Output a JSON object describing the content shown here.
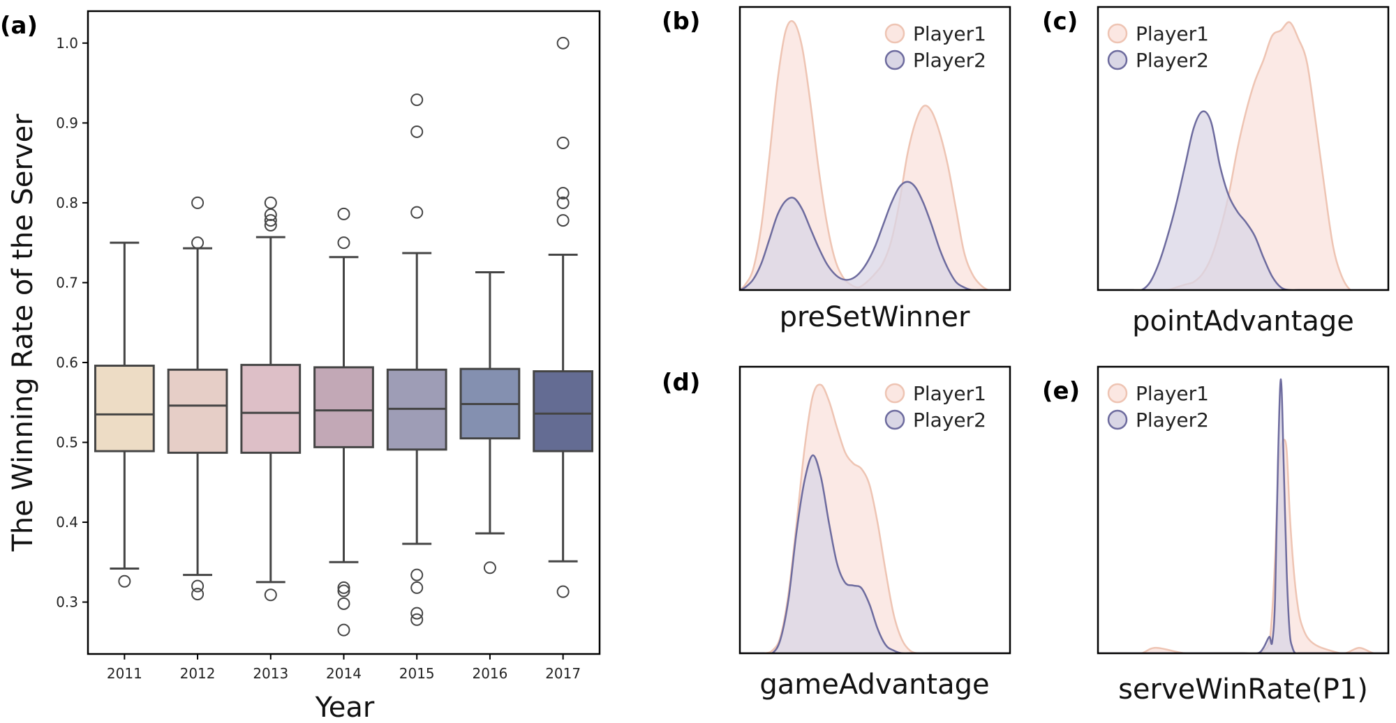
{
  "colors": {
    "player1_fill": "#fbe7e2",
    "player1_line": "#eec4b3",
    "player2_fill": "#d9d6e5",
    "player2_line": "#6d6b9e",
    "box_edge": "#444444"
  },
  "chart_data": [
    {
      "id": "a",
      "panel_label": "(a)",
      "type": "box",
      "title": "",
      "xlabel": "Year",
      "ylabel": "The Winning Rate of the Server",
      "ylim": [
        0.235,
        1.04
      ],
      "yticks": [
        "0.3",
        "0.4",
        "0.5",
        "0.6",
        "0.7",
        "0.8",
        "0.9",
        "1.0"
      ],
      "categories": [
        "2011",
        "2012",
        "2013",
        "2014",
        "2015",
        "2016",
        "2017"
      ],
      "box_colors": [
        "#eddcc5",
        "#e6cec7",
        "#ddbfc7",
        "#c2a8b6",
        "#9e9db6",
        "#8490b0",
        "#646c93"
      ],
      "boxes": [
        {
          "whislo": 0.342,
          "q1": 0.489,
          "med": 0.535,
          "q3": 0.596,
          "whishi": 0.75,
          "fliers": [
            0.326
          ]
        },
        {
          "whislo": 0.334,
          "q1": 0.487,
          "med": 0.546,
          "q3": 0.591,
          "whishi": 0.743,
          "fliers": [
            0.8,
            0.75,
            0.32,
            0.31
          ]
        },
        {
          "whislo": 0.325,
          "q1": 0.487,
          "med": 0.537,
          "q3": 0.597,
          "whishi": 0.757,
          "fliers": [
            0.8,
            0.785,
            0.778,
            0.772,
            0.309
          ]
        },
        {
          "whislo": 0.35,
          "q1": 0.494,
          "med": 0.54,
          "q3": 0.594,
          "whishi": 0.732,
          "fliers": [
            0.786,
            0.75,
            0.318,
            0.314,
            0.298,
            0.265
          ]
        },
        {
          "whislo": 0.373,
          "q1": 0.491,
          "med": 0.542,
          "q3": 0.591,
          "whishi": 0.737,
          "fliers": [
            0.929,
            0.889,
            0.788,
            0.334,
            0.318,
            0.286,
            0.278
          ]
        },
        {
          "whislo": 0.386,
          "q1": 0.505,
          "med": 0.548,
          "q3": 0.592,
          "whishi": 0.713,
          "fliers": [
            0.343
          ]
        },
        {
          "whislo": 0.351,
          "q1": 0.489,
          "med": 0.536,
          "q3": 0.589,
          "whishi": 0.735,
          "fliers": [
            1.0,
            0.875,
            0.812,
            0.8,
            0.778,
            0.313
          ]
        }
      ]
    },
    {
      "id": "b",
      "panel_label": "(b)",
      "type": "area",
      "xlabel": "preSetWinner",
      "legend_position": "top-right",
      "legend": [
        "Player1",
        "Player2"
      ],
      "x": [
        0,
        0.02,
        0.05,
        0.08,
        0.11,
        0.14,
        0.17,
        0.2,
        0.23,
        0.26,
        0.29,
        0.32,
        0.35,
        0.38,
        0.41,
        0.44,
        0.47,
        0.5,
        0.53,
        0.56,
        0.59,
        0.62,
        0.65,
        0.68,
        0.71,
        0.74,
        0.77,
        0.8,
        0.83,
        0.86,
        0.89,
        0.92,
        0.95,
        0.98,
        1.0
      ],
      "series": [
        {
          "name": "Player1",
          "values": [
            0.0,
            0.02,
            0.08,
            0.24,
            0.5,
            0.78,
            0.96,
            0.99,
            0.9,
            0.7,
            0.46,
            0.26,
            0.12,
            0.05,
            0.02,
            0.01,
            0.03,
            0.06,
            0.1,
            0.18,
            0.32,
            0.5,
            0.62,
            0.68,
            0.66,
            0.58,
            0.46,
            0.3,
            0.14,
            0.06,
            0.02,
            0.0,
            0.0,
            0.0,
            0.0
          ]
        },
        {
          "name": "Player2",
          "values": [
            0.0,
            0.01,
            0.04,
            0.1,
            0.19,
            0.28,
            0.33,
            0.34,
            0.3,
            0.23,
            0.16,
            0.1,
            0.06,
            0.04,
            0.04,
            0.06,
            0.1,
            0.16,
            0.24,
            0.32,
            0.38,
            0.4,
            0.38,
            0.32,
            0.24,
            0.15,
            0.08,
            0.03,
            0.01,
            0.0,
            0.0,
            0.0,
            0.0,
            0.0,
            0.0
          ]
        }
      ]
    },
    {
      "id": "c",
      "panel_label": "(c)",
      "type": "area",
      "xlabel": "pointAdvantage",
      "legend_position": "top-left",
      "legend": [
        "Player1",
        "Player2"
      ],
      "x": [
        0,
        0.03,
        0.06,
        0.09,
        0.12,
        0.15,
        0.18,
        0.21,
        0.24,
        0.27,
        0.3,
        0.33,
        0.36,
        0.39,
        0.42,
        0.45,
        0.48,
        0.51,
        0.54,
        0.57,
        0.6,
        0.63,
        0.66,
        0.69,
        0.72,
        0.75,
        0.78,
        0.81,
        0.84,
        0.87,
        0.9,
        0.93,
        0.96,
        1.0
      ],
      "series": [
        {
          "name": "Player1",
          "values": [
            0.0,
            0.0,
            0.0,
            0.0,
            0.0,
            0.0,
            0.0,
            0.0,
            0.0,
            0.01,
            0.02,
            0.03,
            0.06,
            0.12,
            0.22,
            0.35,
            0.52,
            0.66,
            0.77,
            0.85,
            0.94,
            0.96,
            0.99,
            0.93,
            0.84,
            0.62,
            0.38,
            0.16,
            0.05,
            0.0,
            0.0,
            0.0,
            0.0,
            0.0
          ]
        },
        {
          "name": "Player2",
          "values": [
            0.0,
            0.0,
            0.0,
            0.0,
            0.0,
            0.0,
            0.03,
            0.1,
            0.2,
            0.32,
            0.46,
            0.6,
            0.66,
            0.62,
            0.46,
            0.35,
            0.29,
            0.25,
            0.2,
            0.12,
            0.05,
            0.01,
            0.0,
            0.0,
            0.0,
            0.0,
            0.0,
            0.0,
            0.0,
            0.0,
            0.0,
            0.0,
            0.0,
            0.0
          ]
        }
      ]
    },
    {
      "id": "d",
      "panel_label": "(d)",
      "type": "area",
      "xlabel": "gameAdvantage",
      "legend_position": "top-right",
      "legend": [
        "Player1",
        "Player2"
      ],
      "x": [
        0,
        0.03,
        0.06,
        0.09,
        0.12,
        0.15,
        0.18,
        0.21,
        0.24,
        0.27,
        0.3,
        0.33,
        0.36,
        0.39,
        0.42,
        0.45,
        0.48,
        0.51,
        0.54,
        0.57,
        0.6,
        0.63,
        0.66,
        0.69,
        0.72,
        0.75,
        0.78,
        0.81,
        0.84,
        0.87,
        0.9,
        0.93,
        0.96,
        1.0
      ],
      "series": [
        {
          "name": "Player1",
          "values": [
            0.0,
            0.0,
            0.0,
            0.0,
            0.01,
            0.06,
            0.22,
            0.48,
            0.76,
            0.95,
            0.99,
            0.93,
            0.83,
            0.74,
            0.7,
            0.68,
            0.62,
            0.48,
            0.3,
            0.14,
            0.05,
            0.01,
            0.0,
            0.0,
            0.0,
            0.0,
            0.0,
            0.0,
            0.0,
            0.0,
            0.0,
            0.0,
            0.0,
            0.0
          ]
        },
        {
          "name": "Player2",
          "values": [
            0.0,
            0.0,
            0.0,
            0.0,
            0.0,
            0.05,
            0.2,
            0.45,
            0.64,
            0.73,
            0.65,
            0.48,
            0.33,
            0.26,
            0.25,
            0.24,
            0.18,
            0.09,
            0.03,
            0.01,
            0.0,
            0.0,
            0.0,
            0.0,
            0.0,
            0.0,
            0.0,
            0.0,
            0.0,
            0.0,
            0.0,
            0.0,
            0.0,
            0.0
          ]
        }
      ]
    },
    {
      "id": "e",
      "panel_label": "(e)",
      "type": "area",
      "xlabel": "serveWinRate(P1)",
      "legend_position": "top-left",
      "legend": [
        "Player1",
        "Player2"
      ],
      "x": [
        0,
        0.05,
        0.1,
        0.15,
        0.2,
        0.3,
        0.4,
        0.5,
        0.55,
        0.57,
        0.59,
        0.6,
        0.61,
        0.62,
        0.63,
        0.64,
        0.65,
        0.66,
        0.67,
        0.68,
        0.69,
        0.7,
        0.72,
        0.75,
        0.8,
        0.85,
        0.9,
        0.95,
        1.0
      ],
      "series": [
        {
          "name": "Player1",
          "values": [
            0.0,
            0.0,
            0.0,
            0.0,
            0.02,
            0.0,
            0.0,
            0.0,
            0.0,
            0.01,
            0.04,
            0.15,
            0.35,
            0.62,
            0.75,
            0.78,
            0.74,
            0.52,
            0.36,
            0.24,
            0.16,
            0.11,
            0.06,
            0.03,
            0.01,
            0.0,
            0.02,
            0.0,
            0.0
          ]
        },
        {
          "name": "Player2",
          "values": [
            0.0,
            0.0,
            0.0,
            0.0,
            0.0,
            0.0,
            0.0,
            0.0,
            0.0,
            0.02,
            0.06,
            0.04,
            0.2,
            0.7,
            1.0,
            0.68,
            0.3,
            0.08,
            0.02,
            0.0,
            0.0,
            0.0,
            0.0,
            0.0,
            0.0,
            0.0,
            0.0,
            0.0,
            0.0
          ]
        }
      ]
    }
  ]
}
